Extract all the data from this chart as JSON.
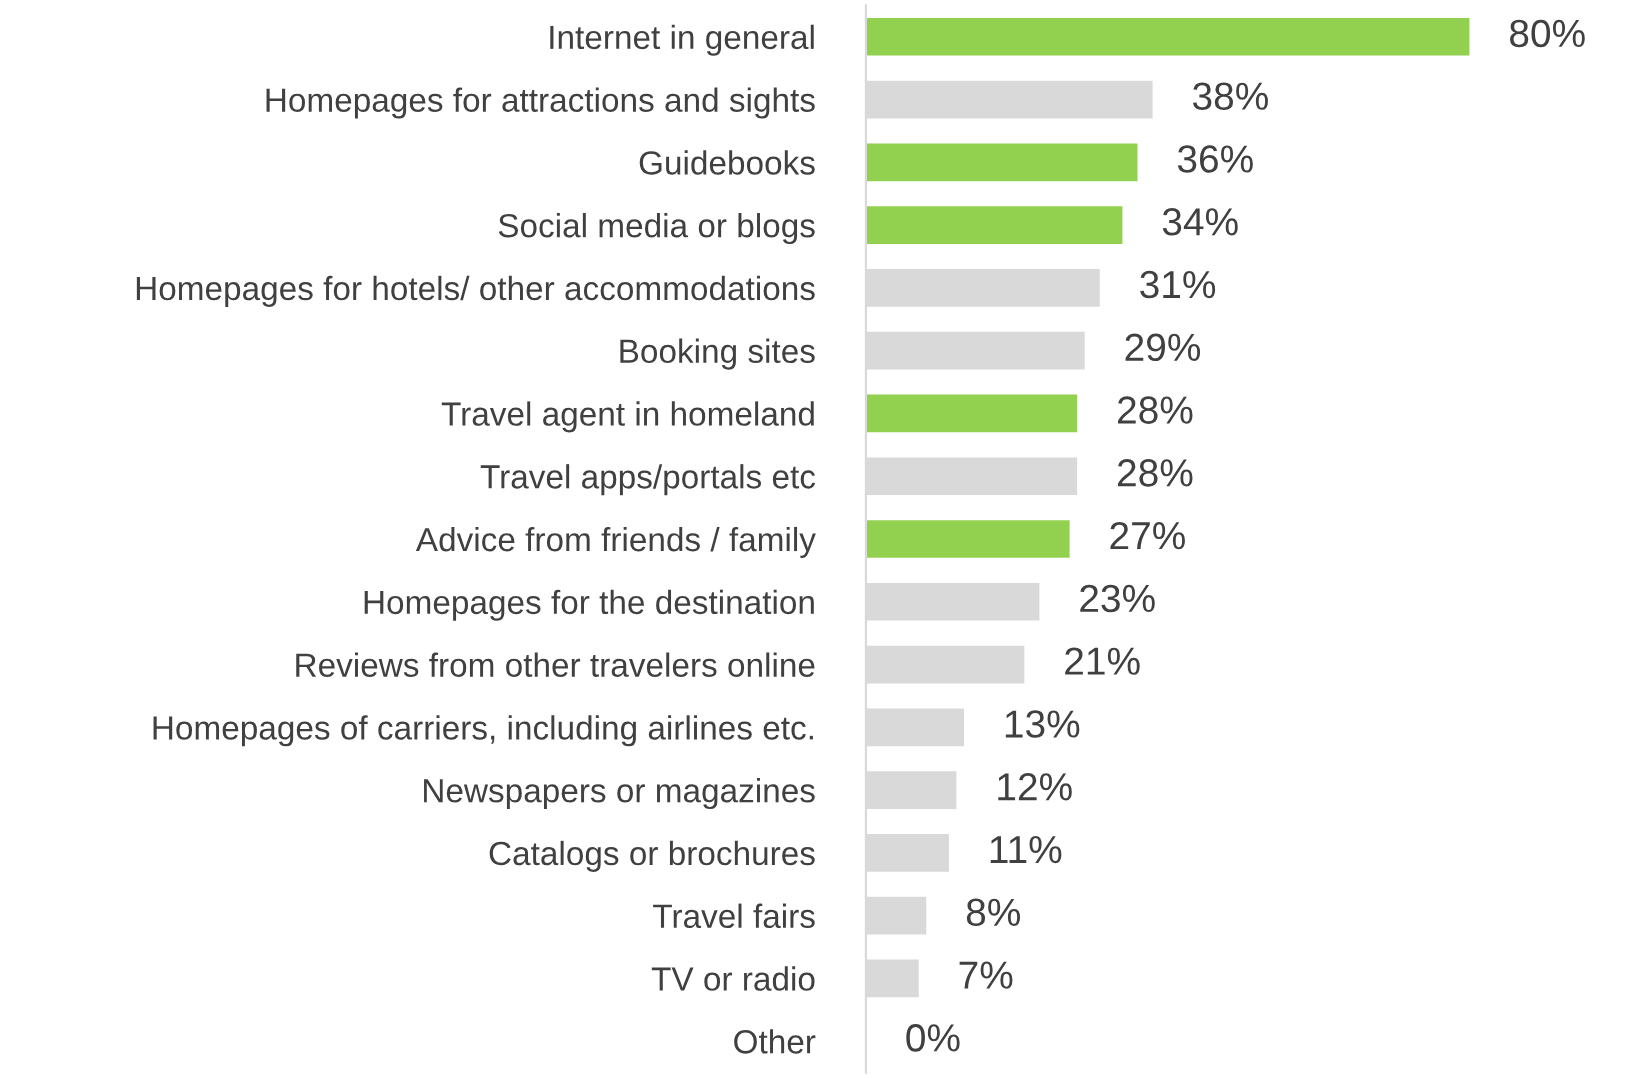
{
  "chart_data": {
    "type": "bar",
    "orientation": "horizontal",
    "categories": [
      "Internet in general",
      "Homepages for attractions and sights",
      "Guidebooks",
      "Social media or blogs",
      "Homepages for hotels/ other accommodations",
      "Booking sites",
      "Travel agent in homeland",
      "Travel apps/portals etc",
      "Advice from friends / family",
      "Homepages for the destination",
      "Reviews from other travelers online",
      "Homepages of carriers, including airlines etc.",
      "Newspapers or magazines",
      "Catalogs or brochures",
      "Travel fairs",
      "TV or radio",
      "Other"
    ],
    "values": [
      80,
      38,
      36,
      34,
      31,
      29,
      28,
      28,
      27,
      23,
      21,
      13,
      12,
      11,
      8,
      7,
      0
    ],
    "value_labels": [
      "80%",
      "38%",
      "36%",
      "34%",
      "31%",
      "29%",
      "28%",
      "28%",
      "27%",
      "23%",
      "21%",
      "13%",
      "12%",
      "11%",
      "8%",
      "7%",
      "0%"
    ],
    "colors": [
      "#92d050",
      "#d9d9d9",
      "#92d050",
      "#92d050",
      "#d9d9d9",
      "#d9d9d9",
      "#92d050",
      "#d9d9d9",
      "#92d050",
      "#d9d9d9",
      "#d9d9d9",
      "#d9d9d9",
      "#d9d9d9",
      "#d9d9d9",
      "#d9d9d9",
      "#d9d9d9",
      "#d9d9d9"
    ],
    "grid": false,
    "legend": false
  }
}
